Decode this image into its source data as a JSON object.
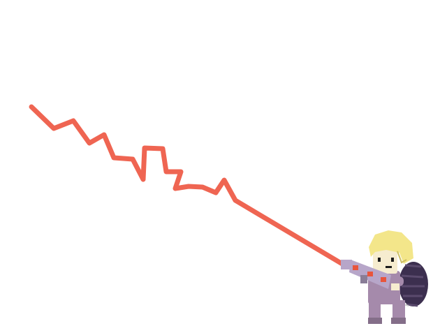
{
  "scene": {
    "background_color": "#ffffff",
    "beam": {
      "color": "#ef6552"
    },
    "character": {
      "hair_color": "#f3e68a",
      "skin_color": "#f6eccf",
      "suit_color": "#a58aab",
      "pack_color": "#3c2f4f",
      "weapon_color": "#b7a6c9",
      "accent_color": "#e8553c",
      "icon": "proton-pack-ghost-hunter"
    }
  }
}
